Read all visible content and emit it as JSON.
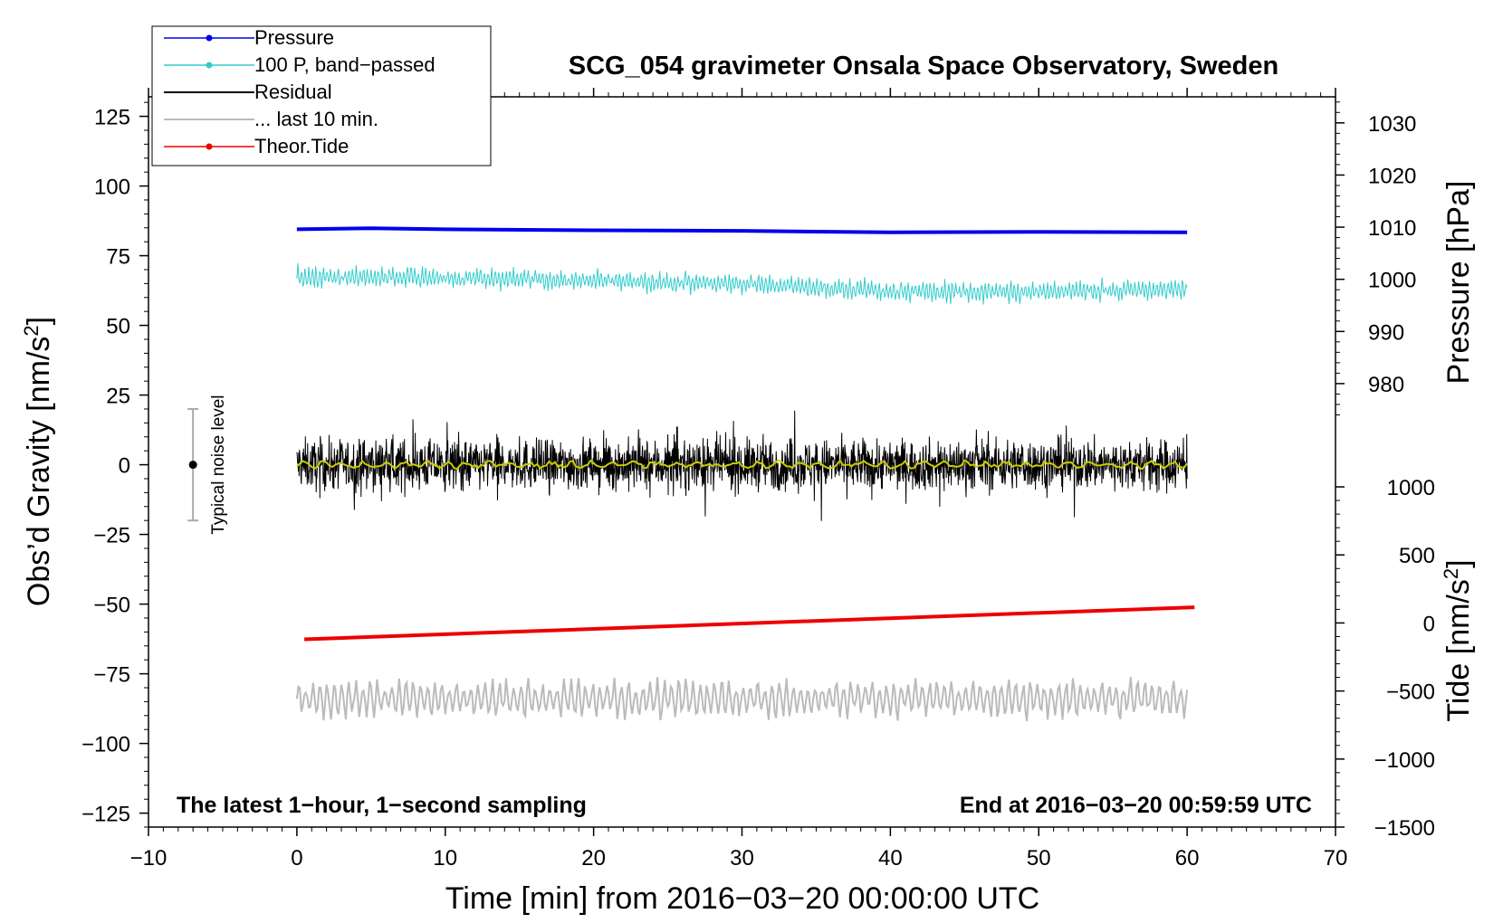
{
  "chart_data": {
    "type": "line",
    "title": "SCG_054 gravimeter Onsala Space Observatory, Sweden",
    "xlabel": "Time [min] from 2016−03−20 00:00:00 UTC",
    "ylabel_left": "Obs’d Gravity [nm/s²]",
    "ylabel_left_main": "Obs’d Gravity [nm/s",
    "ylabel_left_sup": "2",
    "ylabel_left_end": "]",
    "ylabel_right_pressure": "Pressure [hPa]",
    "ylabel_right_tide": "Tide [nm/s²]",
    "ylabel_right_tide_main": "Tide [nm/s",
    "ylabel_right_tide_sup": "2",
    "ylabel_right_tide_end": "]",
    "xlim": [
      -10,
      70
    ],
    "ylim": [
      -130,
      132
    ],
    "x_ticks": [
      "−10",
      "0",
      "10",
      "20",
      "30",
      "40",
      "50",
      "60",
      "70"
    ],
    "x_tick_values": [
      -10,
      0,
      10,
      20,
      30,
      40,
      50,
      60,
      70
    ],
    "y_ticks": [
      "125",
      "100",
      "75",
      "50",
      "25",
      "0",
      "−25",
      "−50",
      "−75",
      "−100",
      "−125"
    ],
    "y_tick_values": [
      125,
      100,
      75,
      50,
      25,
      0,
      -25,
      -50,
      -75,
      -100,
      -125
    ],
    "pressure_axis": {
      "ticks": [
        "1030",
        "1020",
        "1010",
        "1000",
        "990",
        "980"
      ],
      "tick_values": [
        1030,
        1020,
        1010,
        1000,
        990,
        980
      ],
      "range": [
        972,
        1035
      ]
    },
    "tide_axis": {
      "ticks": [
        "1000",
        "500",
        "0",
        "−500",
        "−1000",
        "−1500"
      ],
      "tick_values": [
        1000,
        500,
        0,
        -500,
        -1000,
        -1500
      ],
      "range": [
        -1500,
        1100
      ]
    },
    "series": [
      {
        "name": "Pressure",
        "color": "#0000ee",
        "axis": "pressure",
        "x": [
          0,
          5,
          10,
          20,
          30,
          40,
          50,
          60
        ],
        "values": [
          1009.6,
          1009.8,
          1009.6,
          1009.4,
          1009.3,
          1009.0,
          1009.1,
          1009.0
        ]
      },
      {
        "name": "100 P, band−passed",
        "color": "#33cccc",
        "axis": "left",
        "baseline": [
          [
            0,
            67
          ],
          [
            10,
            67
          ],
          [
            20,
            66
          ],
          [
            30,
            65
          ],
          [
            40,
            62
          ],
          [
            50,
            62
          ],
          [
            60,
            63
          ]
        ],
        "amplitude": 3
      },
      {
        "name": "Residual",
        "color": "#000000",
        "axis": "left",
        "baseline": [
          [
            0,
            0
          ],
          [
            60,
            0
          ]
        ],
        "amplitude": 9
      },
      {
        "name": "... last 10 min.",
        "color": "#bbbbbb",
        "axis": "left",
        "baseline": [
          [
            0,
            -84
          ],
          [
            60,
            -84
          ]
        ],
        "amplitude": 7
      },
      {
        "name": "Theor.Tide",
        "color": "#ee0000",
        "axis": "tide",
        "x": [
          0.5,
          60.5
        ],
        "values": [
          -120,
          115
        ]
      }
    ],
    "noise_level": {
      "label": "Typical noise level",
      "x": -7,
      "center": 0,
      "low": -20,
      "high": 20
    },
    "annotations": {
      "left": "The latest 1−hour, 1−second sampling",
      "right": "End at 2016−03−20 00:59:59 UTC"
    },
    "legend": {
      "placement": "top-left",
      "entries": [
        "Pressure",
        "100 P, band−passed",
        "Residual",
        "... last 10 min.",
        "Theor.Tide"
      ]
    }
  }
}
